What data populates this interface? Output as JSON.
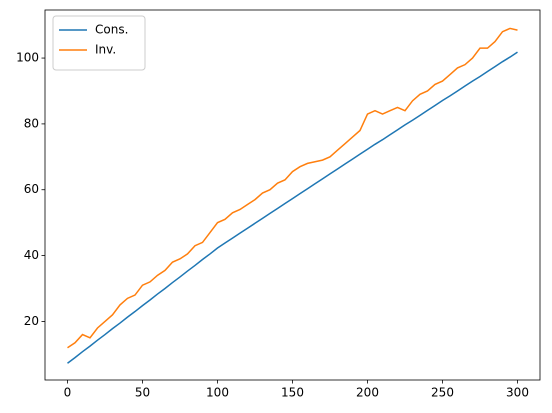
{
  "chart_data": {
    "type": "line",
    "x": [
      0,
      5,
      10,
      15,
      20,
      25,
      30,
      35,
      40,
      45,
      50,
      55,
      60,
      65,
      70,
      75,
      80,
      85,
      90,
      95,
      100,
      105,
      110,
      115,
      120,
      125,
      130,
      135,
      140,
      145,
      150,
      155,
      160,
      165,
      170,
      175,
      180,
      185,
      190,
      195,
      200,
      205,
      210,
      215,
      220,
      225,
      230,
      235,
      240,
      245,
      250,
      255,
      260,
      265,
      270,
      275,
      280,
      285,
      290,
      295,
      300
    ],
    "series": [
      {
        "name": "Cons.",
        "color": "#1f77b4",
        "values": [
          7.3,
          9.0,
          10.8,
          12.5,
          14.3,
          16.0,
          17.8,
          19.5,
          21.3,
          23.0,
          24.8,
          26.5,
          28.3,
          30.0,
          31.8,
          33.5,
          35.3,
          37.0,
          38.8,
          40.5,
          42.3,
          43.8,
          45.3,
          46.8,
          48.3,
          49.8,
          51.3,
          52.8,
          54.3,
          55.8,
          57.3,
          58.8,
          60.3,
          61.8,
          63.3,
          64.8,
          66.3,
          67.8,
          69.3,
          70.8,
          72.3,
          73.8,
          75.2,
          76.7,
          78.2,
          79.7,
          81.1,
          82.6,
          84.1,
          85.6,
          87.1,
          88.5,
          90.0,
          91.5,
          93.0,
          94.4,
          95.9,
          97.4,
          98.9,
          100.3,
          101.8
        ]
      },
      {
        "name": "Inv.",
        "color": "#ff7f0e",
        "values": [
          12,
          13.5,
          16,
          15,
          18,
          20,
          22,
          25,
          27,
          28,
          31,
          32,
          34,
          35.5,
          38,
          39,
          40.5,
          43,
          44,
          47,
          50,
          51,
          53,
          54,
          55.5,
          57,
          59,
          60,
          62,
          63,
          65.5,
          67,
          68,
          68.5,
          69,
          70,
          72,
          74,
          76,
          78,
          83,
          84,
          83,
          84,
          85,
          84,
          87,
          89,
          90,
          92,
          93,
          95,
          97,
          98,
          100,
          103,
          103,
          105,
          108,
          109,
          108.5
        ]
      }
    ],
    "xlim": [
      -15,
      315
    ],
    "xticks": [
      0,
      50,
      100,
      150,
      200,
      250,
      300
    ],
    "ylim": [
      2.2,
      114.6
    ],
    "yticks": [
      20,
      40,
      60,
      80,
      100
    ],
    "grid": false,
    "legend": "upper left"
  }
}
